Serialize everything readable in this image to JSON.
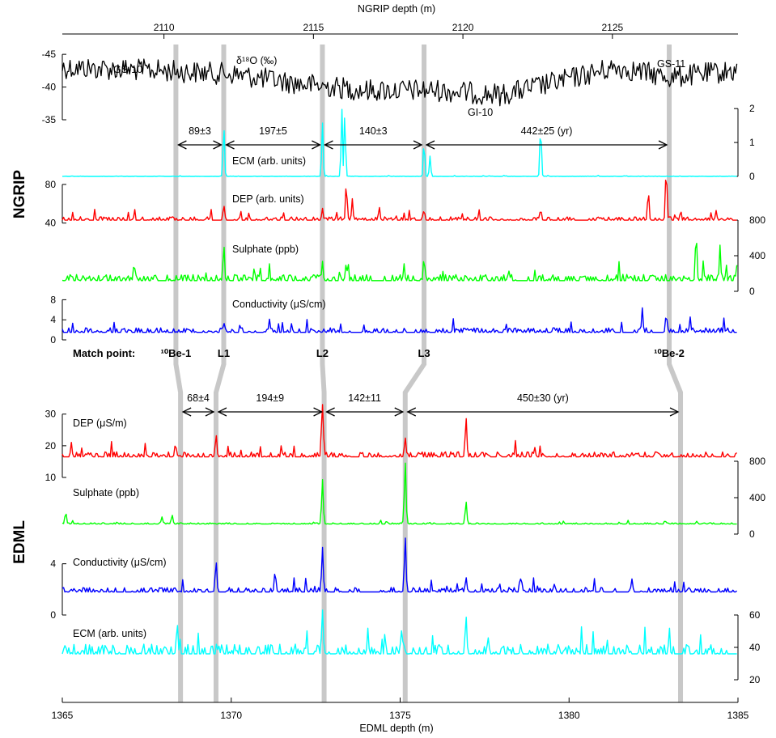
{
  "chart_data": {
    "type": "line",
    "top_axis": {
      "label": "NGRIP depth (m)",
      "ticks": [
        2110,
        2115,
        2120,
        2125
      ],
      "range": [
        2106.6,
        2129.2
      ]
    },
    "bottom_axis": {
      "label": "EDML depth (m)",
      "ticks": [
        1365,
        1370,
        1375,
        1380,
        1385
      ],
      "range": [
        1365,
        1385
      ]
    },
    "panel_labels": [
      "NGRIP",
      "EDML"
    ],
    "match_points": {
      "title": "Match point:",
      "items": [
        {
          "label": "¹⁰Be-1",
          "ngrip_depth": 2110.4,
          "edml_depth": 1368.5
        },
        {
          "label": "L1",
          "ngrip_depth": 2112.0,
          "edml_depth": 1369.55
        },
        {
          "label": "L2",
          "ngrip_depth": 2115.3,
          "edml_depth": 1372.75
        },
        {
          "label": "L3",
          "ngrip_depth": 2118.7,
          "edml_depth": 1375.15
        },
        {
          "label": "¹⁰Be-2",
          "ngrip_depth": 2126.9,
          "edml_depth": 1383.3
        }
      ]
    },
    "climate_labels": [
      "GS-10",
      "GS-11",
      "GI-10"
    ],
    "ngrip_intervals": [
      "89±3",
      "197±5",
      "140±3",
      "442±25 (yr)"
    ],
    "edml_intervals": [
      "68±4",
      "194±9",
      "142±11",
      "450±30 (yr)"
    ],
    "ngrip": [
      {
        "name": "δ¹⁸O (‰)",
        "color": "#000000",
        "axis_side": "left",
        "ticks": [
          -35,
          -40,
          -45
        ],
        "range": [
          -35,
          -46.5
        ],
        "profile": [
          [
            0,
            -43
          ],
          [
            0.15,
            -42.5
          ],
          [
            0.25,
            -42
          ],
          [
            0.35,
            -40.5
          ],
          [
            0.45,
            -39.5
          ],
          [
            0.55,
            -39.5
          ],
          [
            0.65,
            -38.8
          ],
          [
            0.72,
            -40.5
          ],
          [
            0.82,
            -43
          ],
          [
            0.9,
            -41.5
          ],
          [
            1,
            -42.5
          ]
        ],
        "noise": 1.7
      },
      {
        "name": "ECM (arb. units)",
        "color": "#00ffff",
        "axis_side": "right",
        "ticks": [
          0,
          1,
          2
        ],
        "range": [
          0,
          2.1
        ],
        "baseline": 0,
        "peaks": [
          [
            2112.0,
            1.55
          ],
          [
            2115.3,
            1.6
          ],
          [
            2115.95,
            2.0
          ],
          [
            2116.05,
            1.85
          ],
          [
            2118.7,
            1.05
          ],
          [
            2118.9,
            0.6
          ],
          [
            2122.6,
            1.55
          ]
        ],
        "noise": 0.01
      },
      {
        "name": "DEP (arb. units)",
        "color": "#ff0000",
        "axis_side": "left",
        "ticks": [
          40,
          80
        ],
        "range": [
          28,
          100
        ],
        "baseline": 43,
        "peaks": [
          [
            2112.0,
            60
          ],
          [
            2115.3,
            55
          ],
          [
            2116.1,
            83
          ],
          [
            2116.3,
            65
          ],
          [
            2117.2,
            58
          ],
          [
            2118.7,
            55
          ],
          [
            2122.6,
            55
          ],
          [
            2126.2,
            75
          ],
          [
            2126.8,
            100
          ]
        ],
        "noise": 3.5
      },
      {
        "name": "Sulphate (ppb)",
        "color": "#00ff00",
        "axis_side": "right",
        "ticks": [
          0,
          400,
          800
        ],
        "range": [
          0,
          800
        ],
        "baseline": 120,
        "peaks": [
          [
            2109.0,
            330
          ],
          [
            2112.0,
            540
          ],
          [
            2115.3,
            340
          ],
          [
            2116.1,
            330
          ],
          [
            2118.7,
            390
          ],
          [
            2127.8,
            700
          ],
          [
            2128.6,
            520
          ]
        ],
        "noise": 70
      },
      {
        "name": "Conductivity (μS/cm)",
        "color": "#0000ff",
        "axis_side": "left",
        "ticks": [
          0,
          4,
          8
        ],
        "range": [
          0,
          10
        ],
        "baseline": 1.5,
        "peaks": [
          [
            2112.0,
            3.5
          ],
          [
            2126.0,
            6.5
          ],
          [
            2126.8,
            5.5
          ],
          [
            2127.6,
            4.5
          ]
        ],
        "noise": 0.9
      }
    ],
    "edml": [
      {
        "name": "DEP (μS/m)",
        "color": "#ff0000",
        "axis_side": "left",
        "ticks": [
          10,
          20,
          30
        ],
        "range": [
          10,
          33
        ],
        "baseline": 16.5,
        "peaks": [
          [
            1368.35,
            20.5
          ],
          [
            1369.55,
            23.5
          ],
          [
            1372.7,
            40
          ],
          [
            1375.15,
            23
          ],
          [
            1376.95,
            29
          ]
        ],
        "noise": 1.6
      },
      {
        "name": "Sulphate (ppb)",
        "color": "#00ff00",
        "axis_side": "right",
        "ticks": [
          0,
          400,
          800
        ],
        "range": [
          0,
          800
        ],
        "baseline": 110,
        "peaks": [
          [
            1365.1,
            240
          ],
          [
            1367.95,
            190
          ],
          [
            1368.25,
            210
          ],
          [
            1372.7,
            600
          ],
          [
            1375.15,
            800
          ],
          [
            1376.95,
            360
          ]
        ],
        "noise": 14
      },
      {
        "name": "Conductivity (μS/cm)",
        "color": "#0000ff",
        "axis_side": "left",
        "ticks": [
          0,
          4
        ],
        "range": [
          0,
          6
        ],
        "baseline": 1.8,
        "peaks": [
          [
            1369.55,
            4.2
          ],
          [
            1371.3,
            3.4
          ],
          [
            1372.7,
            5.3
          ],
          [
            1375.15,
            6.2
          ],
          [
            1376.95,
            3.0
          ]
        ],
        "noise": 0.35
      },
      {
        "name": "ECM (arb. units)",
        "color": "#00ffff",
        "axis_side": "right",
        "ticks": [
          20,
          40,
          60
        ],
        "range": [
          10,
          65
        ],
        "baseline": 36,
        "peaks": [
          [
            1368.4,
            55
          ],
          [
            1372.7,
            62
          ],
          [
            1375.05,
            52
          ],
          [
            1376.95,
            60
          ]
        ],
        "noise": 6
      }
    ]
  }
}
